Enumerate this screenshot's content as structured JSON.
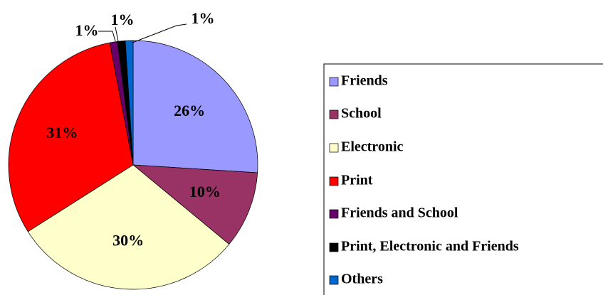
{
  "chart_data": {
    "type": "pie",
    "categories": [
      "Friends",
      "School",
      "Electronic",
      "Print",
      "Friends and School",
      "Print, Electronic and Friends",
      "Others"
    ],
    "values": [
      26,
      10,
      30,
      31,
      1,
      1,
      1
    ],
    "value_labels": [
      "26%",
      "10%",
      "30%",
      "31%",
      "1%",
      "1%",
      "1%"
    ],
    "colors": [
      "#9999ff",
      "#993366",
      "#ffffcc",
      "#ff0000",
      "#660066",
      "#000000",
      "#0066cc"
    ],
    "legend": "right"
  }
}
